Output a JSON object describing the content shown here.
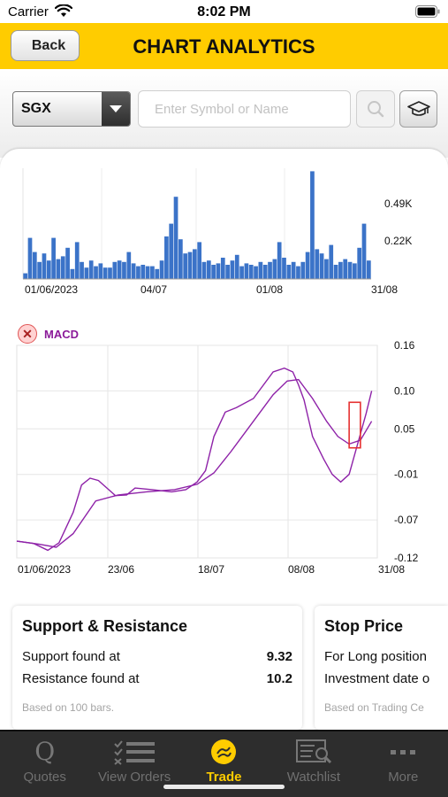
{
  "status_bar": {
    "carrier": "Carrier",
    "time": "8:02 PM"
  },
  "header": {
    "back_label": "Back",
    "title": "CHART ANALYTICS"
  },
  "toolbar": {
    "exchange": "SGX",
    "symbol_placeholder": "Enter Symbol or Name",
    "search_icon": "search-icon",
    "learn_icon": "graduation-cap-icon"
  },
  "chart_data": [
    {
      "type": "bar",
      "x_labels": [
        "01/06/2023",
        "04/07",
        "01/08",
        "31/08"
      ],
      "y_ticks": [
        "0.49K",
        "0.22K"
      ],
      "color": "#3b73c8",
      "values": [
        0.04,
        0.29,
        0.19,
        0.12,
        0.18,
        0.13,
        0.29,
        0.14,
        0.16,
        0.22,
        0.07,
        0.26,
        0.12,
        0.08,
        0.13,
        0.09,
        0.11,
        0.08,
        0.08,
        0.12,
        0.13,
        0.12,
        0.19,
        0.11,
        0.09,
        0.1,
        0.09,
        0.09,
        0.07,
        0.13,
        0.3,
        0.39,
        0.58,
        0.28,
        0.18,
        0.19,
        0.21,
        0.26,
        0.12,
        0.13,
        0.1,
        0.11,
        0.15,
        0.1,
        0.13,
        0.17,
        0.09,
        0.11,
        0.1,
        0.09,
        0.12,
        0.1,
        0.12,
        0.14,
        0.26,
        0.15,
        0.1,
        0.12,
        0.09,
        0.12,
        0.19,
        0.76,
        0.21,
        0.18,
        0.14,
        0.24,
        0.1,
        0.12,
        0.14,
        0.12,
        0.11,
        0.22,
        0.39,
        0.13
      ]
    },
    {
      "type": "line",
      "legend": "MACD",
      "x_labels": [
        "01/06/2023",
        "23/06",
        "18/07",
        "08/08",
        "31/08"
      ],
      "y_ticks": [
        0.16,
        0.1,
        0.05,
        -0.01,
        -0.07,
        -0.12
      ],
      "ylim": [
        -0.12,
        0.16
      ],
      "series": [
        {
          "color": "#8e22a8",
          "x": [
            0,
            6,
            11,
            15,
            20,
            23,
            26,
            29,
            32,
            35,
            39,
            42,
            48,
            55,
            60,
            64,
            67,
            70,
            74,
            78,
            84,
            91,
            95,
            98,
            100,
            102,
            105,
            109,
            112,
            115,
            118,
            121,
            124,
            126
          ],
          "values": [
            -0.098,
            -0.101,
            -0.11,
            -0.1,
            -0.06,
            -0.024,
            -0.015,
            -0.018,
            -0.028,
            -0.038,
            -0.037,
            -0.028,
            -0.03,
            -0.033,
            -0.03,
            -0.02,
            -0.005,
            0.04,
            0.072,
            0.078,
            0.09,
            0.125,
            0.13,
            0.125,
            0.108,
            0.088,
            0.04,
            0.01,
            -0.01,
            -0.02,
            -0.01,
            0.03,
            0.07,
            0.1
          ]
        },
        {
          "color": "#8e22a8",
          "x": [
            0,
            8,
            14,
            20,
            28,
            36,
            46,
            56,
            64,
            70,
            76,
            84,
            91,
            96,
            100,
            105,
            110,
            114,
            118,
            122,
            126
          ],
          "values": [
            -0.098,
            -0.102,
            -0.106,
            -0.088,
            -0.045,
            -0.037,
            -0.033,
            -0.03,
            -0.023,
            -0.008,
            0.02,
            0.06,
            0.095,
            0.113,
            0.115,
            0.09,
            0.06,
            0.04,
            0.03,
            0.035,
            0.06
          ]
        }
      ],
      "highlight": {
        "x": [
          118,
          122
        ],
        "y": [
          0.025,
          0.085
        ],
        "color": "#e53030"
      }
    }
  ],
  "support_resistance": {
    "title": "Support & Resistance",
    "support_label": "Support found at",
    "support_value": "9.32",
    "resistance_label": "Resistance found at",
    "resistance_value": "10.2",
    "note": "Based on 100 bars."
  },
  "stop_price": {
    "title": "Stop Price",
    "row1": "For Long position",
    "row2": "Investment date o",
    "note": "Based on Trading Ce"
  },
  "tabs": [
    {
      "label": "Quotes",
      "icon": "quotes-icon"
    },
    {
      "label": "View Orders",
      "icon": "list-icon"
    },
    {
      "label": "Trade",
      "icon": "trade-icon",
      "active": true
    },
    {
      "label": "Watchlist",
      "icon": "watchlist-icon"
    },
    {
      "label": "More",
      "icon": "more-icon"
    }
  ]
}
